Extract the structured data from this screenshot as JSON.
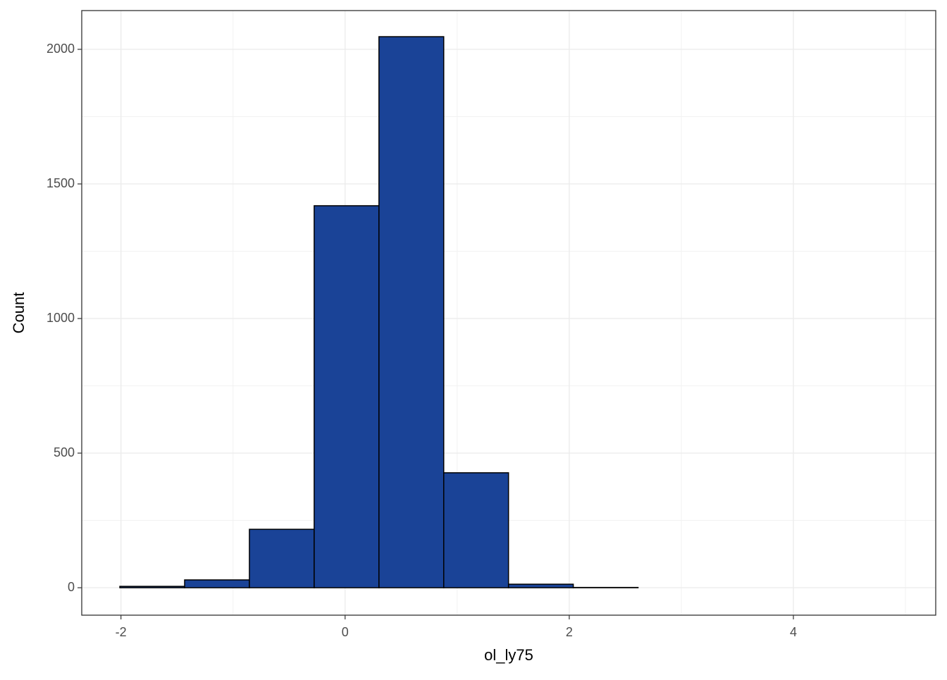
{
  "chart_data": {
    "type": "histogram",
    "x_label": "ol_ly75",
    "y_label": "Count",
    "bins": [
      -2.01,
      -1.432,
      -0.854,
      -0.276,
      0.302,
      0.88,
      1.458,
      2.036,
      2.614,
      3.192,
      3.77,
      4.348,
      4.926
    ],
    "values": [
      5,
      29,
      217,
      1419,
      2047,
      427,
      13,
      1,
      0,
      0,
      0,
      0
    ],
    "color": "#1a4397",
    "xlim": [
      -2.35,
      5.27
    ],
    "xticks": [
      -2,
      0,
      2,
      4
    ],
    "ylim": [
      -102,
      2144
    ],
    "yticks": [
      0,
      500,
      1000,
      1500,
      2000
    ],
    "grid": true
  }
}
